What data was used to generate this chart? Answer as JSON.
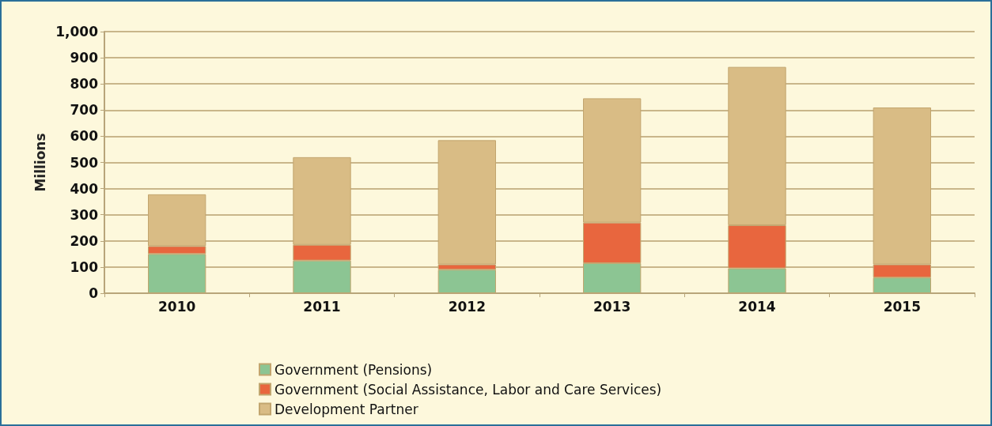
{
  "chart_data": {
    "type": "bar",
    "stacked": true,
    "ylabel": "Millions",
    "categories": [
      "2010",
      "2011",
      "2012",
      "2013",
      "2014",
      "2015"
    ],
    "series": [
      {
        "name": "Government (Pensions)",
        "color": "#8cc593",
        "values": [
          150,
          125,
          90,
          115,
          95,
          60
        ]
      },
      {
        "name": "Government (Social Assistance, Labor and Care Services)",
        "color": "#e8663e",
        "values": [
          30,
          60,
          20,
          155,
          165,
          50
        ]
      },
      {
        "name": "Development Partner",
        "color": "#d9bc85",
        "values": [
          198,
          335,
          475,
          475,
          605,
          600
        ]
      }
    ],
    "ylim": [
      0,
      1000
    ],
    "yticks": [
      0,
      100,
      200,
      300,
      400,
      500,
      600,
      700,
      800,
      900,
      {
        "value": 1000,
        "label": "1,000"
      }
    ],
    "grid": "y",
    "legend": "bottom"
  }
}
